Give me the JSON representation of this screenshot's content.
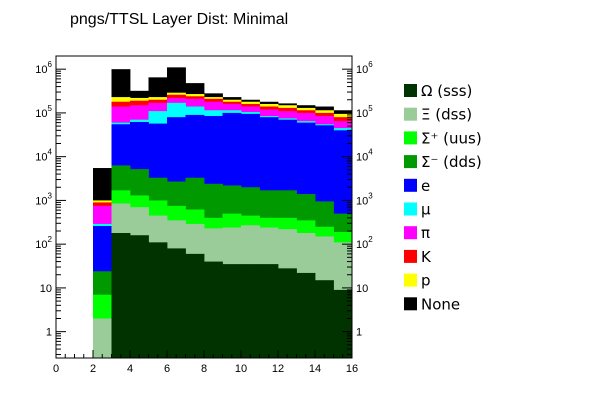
{
  "chart_data": {
    "type": "bar",
    "stacked": true,
    "title": "pngs/TTSL Layer Dist: Minimal",
    "xlabel": "",
    "ylabel": "",
    "xlim": [
      0,
      16
    ],
    "ylim": [
      0.25,
      2000000
    ],
    "yscale": "log",
    "bin_width": 1,
    "x_ticks": [
      "0",
      "2",
      "4",
      "6",
      "8",
      "10",
      "12",
      "14",
      "16"
    ],
    "y_ticks": [
      {
        "value": 1,
        "base": "1",
        "exp": ""
      },
      {
        "value": 10,
        "base": "10",
        "exp": ""
      },
      {
        "value": 100,
        "base": "10",
        "exp": "2"
      },
      {
        "value": 1000,
        "base": "10",
        "exp": "3"
      },
      {
        "value": 10000,
        "base": "10",
        "exp": "4"
      },
      {
        "value": 100000,
        "base": "10",
        "exp": "5"
      },
      {
        "value": 1000000,
        "base": "10",
        "exp": "6"
      }
    ],
    "bins": [
      2,
      3,
      4,
      5,
      6,
      7,
      8,
      9,
      10,
      11,
      12,
      13,
      14,
      15
    ],
    "series": [
      {
        "label": "Ω (sss)",
        "color": "#003300",
        "cumulative": [
          0.25,
          180,
          160,
          110,
          80,
          60,
          40,
          35,
          35,
          35,
          28,
          22,
          15,
          9
        ]
      },
      {
        "label": "Ξ (dss)",
        "color": "#99cc99",
        "cumulative": [
          2,
          850,
          700,
          450,
          350,
          290,
          230,
          240,
          270,
          240,
          220,
          180,
          150,
          110
        ]
      },
      {
        "label": "Σ⁺ (uus)",
        "color": "#00ff00",
        "cumulative": [
          7,
          1700,
          1300,
          1000,
          750,
          620,
          400,
          500,
          450,
          400,
          400,
          350,
          250,
          190
        ]
      },
      {
        "label": "Σ⁻ (dds)",
        "color": "#009900",
        "cumulative": [
          24,
          6300,
          5200,
          3300,
          2700,
          3300,
          2400,
          2200,
          2000,
          1700,
          1700,
          1400,
          950,
          500
        ]
      },
      {
        "label": "e",
        "color": "#0000ff",
        "cumulative": [
          260,
          55000,
          62000,
          57000,
          80000,
          90000,
          85000,
          100000,
          95000,
          80000,
          70000,
          60000,
          52000,
          40000
        ]
      },
      {
        "label": "μ",
        "color": "#00ffff",
        "cumulative": [
          290,
          60000,
          70000,
          110000,
          170000,
          140000,
          115000,
          115000,
          105000,
          85000,
          75000,
          65000,
          55000,
          45000
        ]
      },
      {
        "label": "π",
        "color": "#ff00ff",
        "cumulative": [
          750,
          140000,
          150000,
          170000,
          220000,
          210000,
          180000,
          160000,
          140000,
          120000,
          110000,
          100000,
          85000,
          65000
        ]
      },
      {
        "label": "K",
        "color": "#ff0000",
        "cumulative": [
          900,
          180000,
          190000,
          200000,
          260000,
          240000,
          210000,
          180000,
          160000,
          140000,
          130000,
          115000,
          100000,
          80000
        ]
      },
      {
        "label": "p",
        "color": "#ffff00",
        "cumulative": [
          1000,
          230000,
          220000,
          230000,
          290000,
          270000,
          230000,
          200000,
          180000,
          160000,
          150000,
          130000,
          115000,
          95000
        ]
      },
      {
        "label": "None",
        "color": "#000000",
        "cumulative": [
          5500,
          1000000,
          320000,
          650000,
          1100000,
          480000,
          280000,
          230000,
          200000,
          180000,
          165000,
          150000,
          140000,
          115000
        ]
      }
    ],
    "legend": {
      "placement": "right",
      "entries": [
        "Ω (sss)",
        "Ξ (dss)",
        "Σ⁺ (uus)",
        "Σ⁻ (dds)",
        "e",
        "μ",
        "π",
        "K",
        "p",
        "None"
      ]
    },
    "grid": false
  }
}
